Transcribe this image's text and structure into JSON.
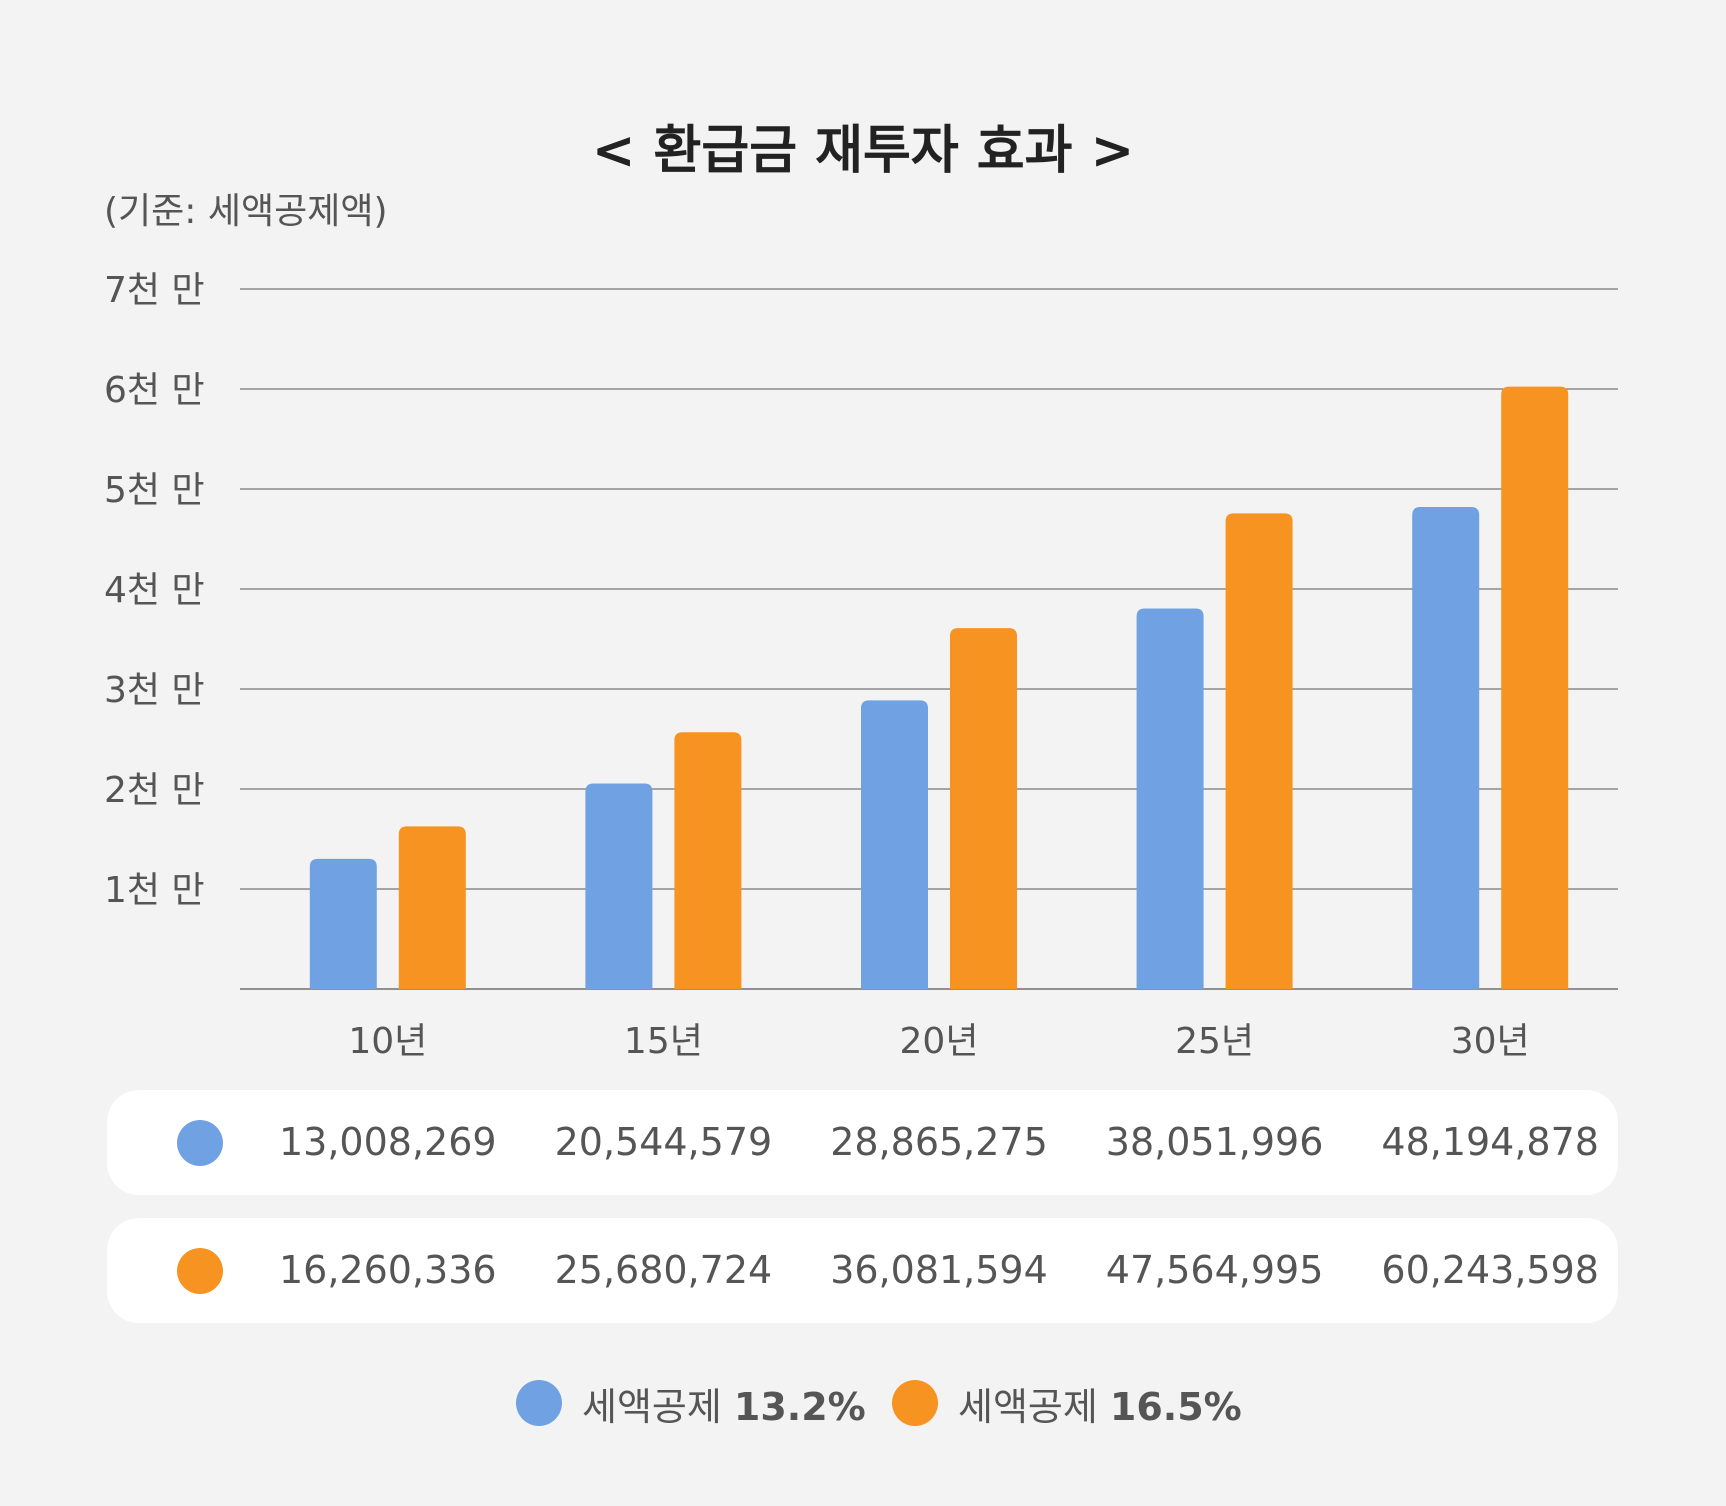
{
  "title": "< 환급금 재투자 효과 >",
  "subtitle": "(기준: 세액공제액)",
  "colors": {
    "series_blue": "#70a1e3",
    "series_orange": "#f79320",
    "background": "#f3f3f3",
    "grid": "#555555"
  },
  "chart_data": {
    "type": "bar",
    "categories": [
      "10년",
      "15년",
      "20년",
      "25년",
      "30년"
    ],
    "y_tick_labels": [
      "1천 만",
      "2천 만",
      "3천 만",
      "4천 만",
      "5천 만",
      "6천 만",
      "7천 만"
    ],
    "y_ticks": [
      10000000,
      20000000,
      30000000,
      40000000,
      50000000,
      60000000,
      70000000
    ],
    "ylim": [
      0,
      70000000
    ],
    "grid": true,
    "legend_position": "bottom",
    "series": [
      {
        "name": "세액공제 13.2%",
        "color": "#70a1e3",
        "values": [
          13008269,
          20544579,
          28865275,
          38051996,
          48194878
        ]
      },
      {
        "name": "세액공제 16.5%",
        "color": "#f79320",
        "values": [
          16260336,
          25680724,
          36081594,
          47564995,
          60243598
        ]
      }
    ]
  },
  "table": {
    "rows": [
      {
        "values": [
          "13,008,269",
          "20,544,579",
          "28,865,275",
          "38,051,996",
          "48,194,878"
        ]
      },
      {
        "values": [
          "16,260,336",
          "25,680,724",
          "36,081,594",
          "47,564,995",
          "60,243,598"
        ]
      }
    ]
  },
  "legend": [
    {
      "label": "세액공제 ",
      "bold": "13.2%"
    },
    {
      "label": "세액공제 ",
      "bold": "16.5%"
    }
  ]
}
